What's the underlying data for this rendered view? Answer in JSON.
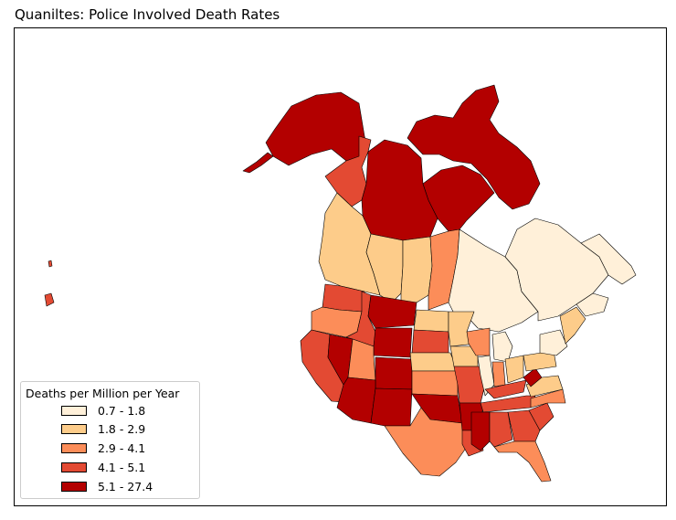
{
  "title": "Quaniltes: Police Involved Death Rates",
  "legend": {
    "title": "Deaths per Million per Year",
    "items": [
      {
        "label": "0.7 - 1.8",
        "color": "#fff0d9"
      },
      {
        "label": "1.8 - 2.9",
        "color": "#fdcc8a"
      },
      {
        "label": "2.9 - 4.1",
        "color": "#fc8d59"
      },
      {
        "label": "4.1 - 5.1",
        "color": "#e34a33"
      },
      {
        "label": "5.1 - 27.4",
        "color": "#b30000"
      }
    ]
  },
  "colors": {
    "q1": "#fff0d9",
    "q2": "#fdcc8a",
    "q3": "#fc8d59",
    "q4": "#e34a33",
    "q5": "#b30000"
  }
}
